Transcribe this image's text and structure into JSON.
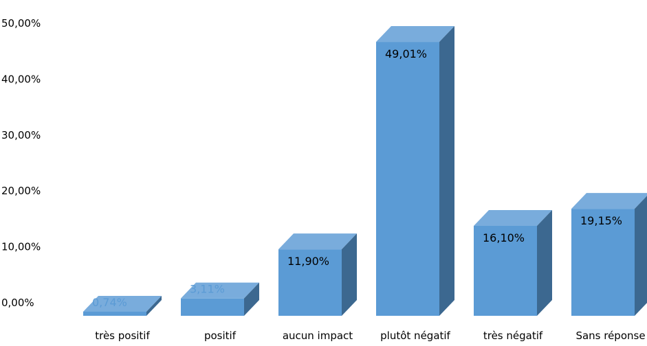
{
  "chart_data": {
    "type": "bar",
    "three_d": true,
    "title": "",
    "xlabel": "",
    "ylabel": "",
    "categories": [
      "très positif",
      "positif",
      "aucun impact",
      "plutôt négatif",
      "très négatif",
      "Sans réponse"
    ],
    "values": [
      0.74,
      3.11,
      11.9,
      49.01,
      16.1,
      19.15
    ],
    "data_labels": [
      "0,74%",
      "3,11%",
      "11,90%",
      "49,01%",
      "16,10%",
      "19,15%"
    ],
    "ylim": [
      0,
      50
    ],
    "yticks": [
      0,
      10,
      20,
      30,
      40,
      50
    ],
    "ytick_labels": [
      "0,00%",
      "10,00%",
      "20,00%",
      "30,00%",
      "40,00%",
      "50,00%"
    ],
    "grid": false,
    "legend": "none",
    "colors": {
      "front": "#5b9bd5",
      "top": "#79acdc",
      "side": "#3c6890",
      "label_outside": "#5b9bd5",
      "label_inside": "#000000"
    }
  }
}
